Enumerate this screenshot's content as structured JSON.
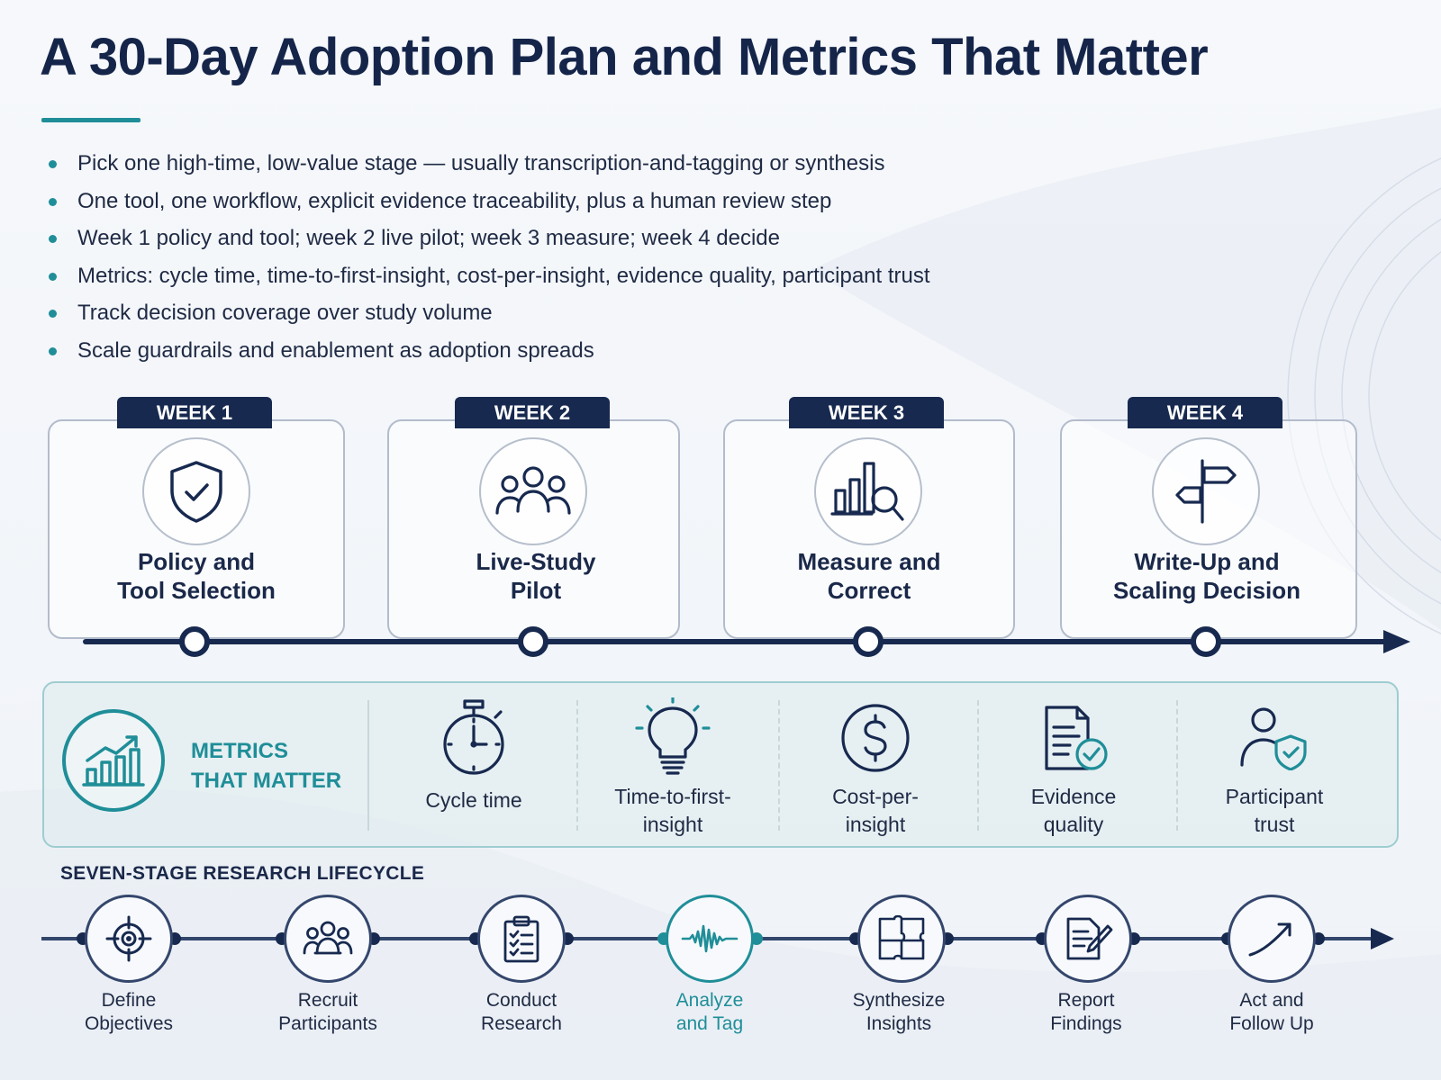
{
  "title": "A 30-Day Adoption Plan and Metrics That Matter",
  "bullets": [
    "Pick one high-time, low-value stage — usually transcription-and-tagging or synthesis",
    "One tool, one workflow, explicit evidence traceability, plus a human review step",
    "Week 1 policy and tool; week 2 live pilot; week 3 measure; week 4 decide",
    "Metrics: cycle time, time-to-first-insight, cost-per-insight, evidence quality, participant trust",
    "Track decision coverage over study volume",
    "Scale guardrails and enablement as adoption spreads"
  ],
  "weeks": [
    {
      "tab": "WEEK 1",
      "line1": "Policy and",
      "line2": "Tool Selection",
      "icon": "shield-check-icon"
    },
    {
      "tab": "WEEK 2",
      "line1": "Live-Study",
      "line2": "Pilot",
      "icon": "people-group-icon"
    },
    {
      "tab": "WEEK 3",
      "line1": "Measure and",
      "line2": "Correct",
      "icon": "chart-magnifier-icon"
    },
    {
      "tab": "WEEK 4",
      "line1": "Write-Up and",
      "line2": "Scaling Decision",
      "icon": "signpost-icon"
    }
  ],
  "metrics": {
    "title_line1": "METRICS",
    "title_line2": "THAT MATTER",
    "items": [
      {
        "line1": "Cycle time",
        "line2": "",
        "icon": "stopwatch-icon"
      },
      {
        "line1": "Time-to-first-",
        "line2": "insight",
        "icon": "lightbulb-icon"
      },
      {
        "line1": "Cost-per-",
        "line2": "insight",
        "icon": "dollar-icon"
      },
      {
        "line1": "Evidence",
        "line2": "quality",
        "icon": "document-check-icon"
      },
      {
        "line1": "Participant",
        "line2": "trust",
        "icon": "person-shield-icon"
      }
    ]
  },
  "lifecycle": {
    "title": "SEVEN-STAGE RESEARCH LIFECYCLE",
    "stages": [
      {
        "line1": "Define",
        "line2": "Objectives",
        "icon": "target-icon"
      },
      {
        "line1": "Recruit",
        "line2": "Participants",
        "icon": "people-icon"
      },
      {
        "line1": "Conduct",
        "line2": "Research",
        "icon": "clipboard-icon"
      },
      {
        "line1": "Analyze",
        "line2": "and Tag",
        "icon": "waveform-icon"
      },
      {
        "line1": "Synthesize",
        "line2": "Insights",
        "icon": "puzzle-icon"
      },
      {
        "line1": "Report",
        "line2": "Findings",
        "icon": "report-icon"
      },
      {
        "line1": "Act and",
        "line2": "Follow Up",
        "icon": "arrow-up-right-icon"
      }
    ]
  },
  "colors": {
    "navy": "#17294f",
    "teal": "#1f8e98"
  }
}
